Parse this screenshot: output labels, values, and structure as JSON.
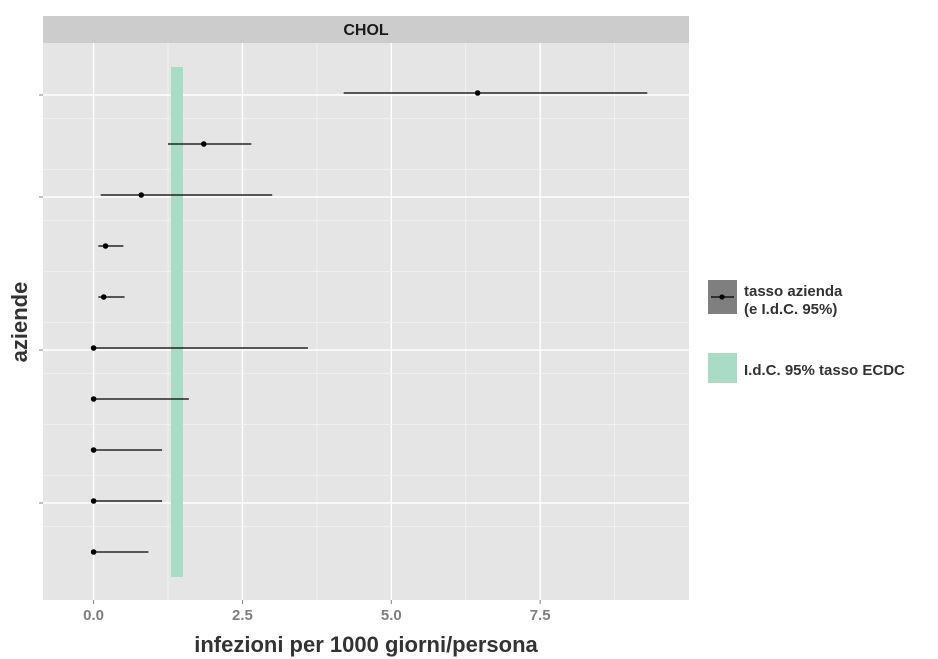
{
  "chart_data": {
    "type": "forest",
    "panel_title": "CHOL",
    "xlabel": "infezioni per 1000 giorni/persona",
    "ylabel": "aziende",
    "xlim": [
      -0.85,
      10.0
    ],
    "x_ticks": [
      0.0,
      2.5,
      5.0,
      7.5
    ],
    "x_tick_labels": [
      "0.0",
      "2.5",
      "5.0",
      "7.5"
    ],
    "grid": true,
    "legend_position": "right",
    "legend": {
      "point_label_line1": "tasso azienda",
      "point_label_line2": "(e I.d.C. 95%)",
      "band_label": "I.d.C. 95% tasso ECDC"
    },
    "reference_band": {
      "low": 1.3,
      "high": 1.5,
      "color": "#a8dcc6"
    },
    "point_color": "#000000",
    "rows": [
      {
        "estimate": 6.45,
        "low": 4.2,
        "high": 9.3
      },
      {
        "estimate": 1.85,
        "low": 1.25,
        "high": 2.65
      },
      {
        "estimate": 0.8,
        "low": 0.12,
        "high": 3.0
      },
      {
        "estimate": 0.2,
        "low": 0.08,
        "high": 0.5
      },
      {
        "estimate": 0.17,
        "low": 0.08,
        "high": 0.52
      },
      {
        "estimate": 0.0,
        "low": 0.0,
        "high": 3.6
      },
      {
        "estimate": 0.0,
        "low": 0.0,
        "high": 1.6
      },
      {
        "estimate": 0.0,
        "low": 0.0,
        "high": 1.15
      },
      {
        "estimate": 0.0,
        "low": 0.0,
        "high": 1.15
      },
      {
        "estimate": 0.0,
        "low": 0.0,
        "high": 0.92
      }
    ]
  }
}
